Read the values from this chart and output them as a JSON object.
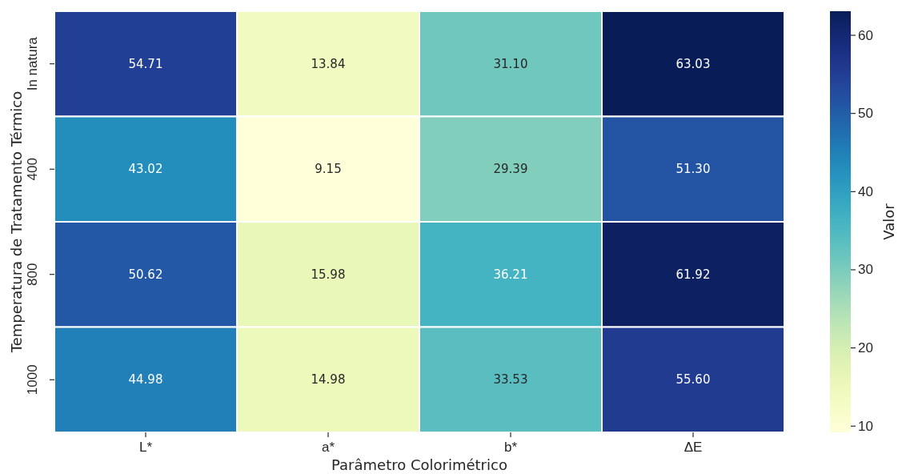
{
  "chart_data": {
    "type": "heatmap",
    "xlabel": "Parâmetro Colorimétrico",
    "ylabel": "Temperatura de Tratamento Térmico",
    "clabel": "Valor",
    "categories": [
      "L*",
      "a*",
      "b*",
      "ΔE"
    ],
    "y_categories": [
      "In natura",
      "400",
      "800",
      "1000"
    ],
    "cells": [
      [
        54.71,
        13.84,
        31.1,
        63.03
      ],
      [
        43.02,
        9.15,
        29.39,
        51.3
      ],
      [
        50.62,
        15.98,
        36.21,
        61.92
      ],
      [
        44.98,
        14.98,
        33.53,
        55.6
      ]
    ],
    "cell_labels": [
      [
        "54.71",
        "13.84",
        "31.10",
        "63.03"
      ],
      [
        "43.02",
        "9.15",
        "29.39",
        "51.30"
      ],
      [
        "50.62",
        "15.98",
        "36.21",
        "61.92"
      ],
      [
        "44.98",
        "14.98",
        "33.53",
        "55.60"
      ]
    ],
    "clim": [
      9.15,
      63.03
    ],
    "cticks": [
      10,
      20,
      30,
      40,
      50,
      60
    ]
  }
}
